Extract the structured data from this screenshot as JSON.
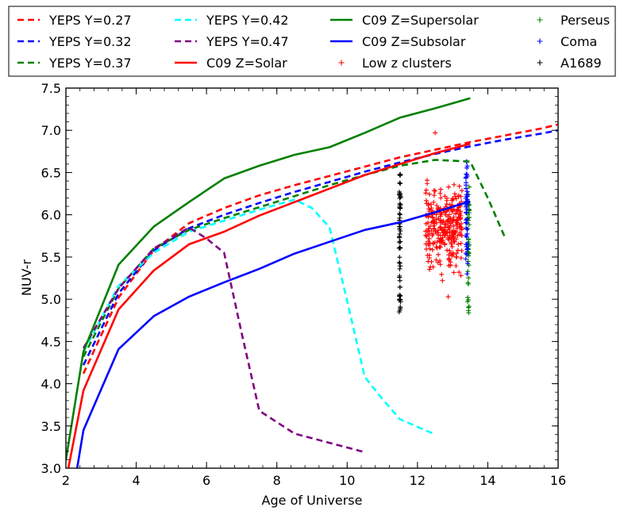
{
  "chart_data": {
    "type": "line",
    "xlabel": "Age of Universe",
    "ylabel": "NUV-r",
    "xlim": [
      2,
      16
    ],
    "ylim": [
      3.0,
      7.5
    ],
    "xticks": [
      2,
      4,
      6,
      8,
      10,
      12,
      14,
      16
    ],
    "xtick_labels": [
      "2",
      "4",
      "6",
      "8",
      "10",
      "12",
      "14",
      "16"
    ],
    "yticks": [
      3.0,
      3.5,
      4.0,
      4.5,
      5.0,
      5.5,
      6.0,
      6.5,
      7.0,
      7.5
    ],
    "ytick_labels": [
      "3.0",
      "3.5",
      "4.0",
      "4.5",
      "5.0",
      "5.5",
      "6.0",
      "6.5",
      "7.0",
      "7.5"
    ],
    "legend_position": "top (above plot, 4 columns)",
    "series": [
      {
        "name": "YEPS Y=0.27",
        "color": "#ff0000",
        "style": "dashed",
        "x": [
          2.5,
          3.5,
          4.5,
          5.5,
          6.5,
          7.5,
          8.5,
          9.5,
          10.5,
          11.5,
          12.5,
          13.5,
          14.5,
          15.5,
          16.0
        ],
        "y": [
          4.12,
          5.02,
          5.58,
          5.9,
          6.08,
          6.23,
          6.35,
          6.46,
          6.57,
          6.68,
          6.77,
          6.86,
          6.94,
          7.02,
          7.07
        ]
      },
      {
        "name": "YEPS Y=0.32",
        "color": "#0000ff",
        "style": "dashed",
        "x": [
          2.5,
          3.5,
          4.5,
          5.5,
          6.5,
          7.5,
          8.5,
          9.5,
          10.5,
          11.5,
          12.5,
          13.5,
          14.5,
          15.5,
          16.0
        ],
        "y": [
          4.22,
          5.07,
          5.58,
          5.84,
          6.0,
          6.14,
          6.27,
          6.39,
          6.51,
          6.62,
          6.72,
          6.81,
          6.89,
          6.96,
          7.0
        ]
      },
      {
        "name": "YEPS Y=0.37",
        "color": "#008000",
        "style": "dashed",
        "x": [
          2.5,
          3.5,
          4.5,
          5.5,
          6.5,
          7.5,
          8.5,
          9.5,
          10.5,
          11.5,
          12.5,
          13.5,
          14.0,
          14.5
        ],
        "y": [
          4.32,
          5.13,
          5.6,
          5.82,
          5.96,
          6.09,
          6.22,
          6.35,
          6.47,
          6.58,
          6.65,
          6.63,
          6.2,
          5.72
        ]
      },
      {
        "name": "YEPS Y=0.42",
        "color": "#00ffff",
        "style": "dashed",
        "x": [
          2.5,
          3.5,
          4.5,
          5.5,
          6.5,
          7.5,
          8.5,
          9.0,
          9.5,
          10.0,
          10.5,
          11.0,
          11.5,
          12.5
        ],
        "y": [
          4.38,
          5.16,
          5.55,
          5.8,
          5.93,
          6.06,
          6.18,
          6.08,
          5.85,
          4.98,
          4.08,
          3.82,
          3.58,
          3.4
        ]
      },
      {
        "name": "YEPS Y=0.47",
        "color": "#800080",
        "style": "dashed",
        "x": [
          2.5,
          3.5,
          4.5,
          5.5,
          6.0,
          6.5,
          7.0,
          7.5,
          8.5,
          9.5,
          10.5
        ],
        "y": [
          4.42,
          5.13,
          5.6,
          5.85,
          5.72,
          5.55,
          4.6,
          3.68,
          3.41,
          3.3,
          3.19
        ]
      },
      {
        "name": "C09 Z=Solar",
        "color": "#ff0000",
        "style": "solid",
        "x": [
          2.0,
          2.5,
          3.5,
          4.5,
          5.5,
          6.5,
          7.5,
          8.5,
          9.5,
          10.5,
          11.5,
          12.5,
          13.5
        ],
        "y": [
          2.85,
          3.92,
          4.88,
          5.34,
          5.65,
          5.8,
          5.99,
          6.15,
          6.31,
          6.47,
          6.6,
          6.73,
          6.84
        ]
      },
      {
        "name": "C09 Z=Supersolar",
        "color": "#008000",
        "style": "solid",
        "x": [
          2.0,
          2.5,
          3.5,
          4.5,
          5.5,
          6.5,
          7.5,
          8.5,
          9.5,
          10.5,
          11.5,
          12.5,
          13.5
        ],
        "y": [
          3.1,
          4.38,
          5.41,
          5.86,
          6.15,
          6.43,
          6.58,
          6.71,
          6.8,
          6.97,
          7.15,
          7.26,
          7.38
        ]
      },
      {
        "name": "C09 Z=Subsolar",
        "color": "#0000ff",
        "style": "solid",
        "x": [
          2.2,
          2.5,
          3.5,
          4.5,
          5.5,
          6.5,
          7.5,
          8.5,
          9.5,
          10.5,
          11.5,
          12.5,
          13.5
        ],
        "y": [
          2.7,
          3.45,
          4.41,
          4.8,
          5.03,
          5.2,
          5.36,
          5.54,
          5.68,
          5.82,
          5.91,
          6.03,
          6.16
        ]
      }
    ],
    "scatter": [
      {
        "name": "Low z clusters",
        "color": "#ff0000",
        "marker": "+",
        "x_range": [
          12.25,
          13.45
        ],
        "y_range": [
          5.03,
          6.97
        ],
        "count": 300
      },
      {
        "name": "Perseus",
        "color": "#008000",
        "marker": "+",
        "x_center": 13.45,
        "x_spread": 0.05,
        "y_range": [
          4.84,
          6.33
        ],
        "count": 45
      },
      {
        "name": "Coma",
        "color": "#0000ff",
        "marker": "+",
        "x_center": 13.4,
        "x_spread": 0.05,
        "y_range": [
          5.3,
          6.63
        ],
        "count": 50
      },
      {
        "name": "A1689",
        "color": "#000000",
        "marker": "+",
        "x_center": 11.5,
        "x_spread": 0.04,
        "y_range": [
          4.85,
          6.48
        ],
        "count": 60
      }
    ],
    "legend": [
      {
        "label": "YEPS Y=0.27",
        "color": "#ff0000",
        "kind": "dashed"
      },
      {
        "label": "YEPS Y=0.32",
        "color": "#0000ff",
        "kind": "dashed"
      },
      {
        "label": "YEPS Y=0.37",
        "color": "#008000",
        "kind": "dashed"
      },
      {
        "label": "YEPS Y=0.42",
        "color": "#00ffff",
        "kind": "dashed"
      },
      {
        "label": "YEPS Y=0.47",
        "color": "#800080",
        "kind": "dashed"
      },
      {
        "label": "C09 Z=Solar",
        "color": "#ff0000",
        "kind": "solid"
      },
      {
        "label": "C09 Z=Supersolar",
        "color": "#008000",
        "kind": "solid"
      },
      {
        "label": "C09 Z=Subsolar",
        "color": "#0000ff",
        "kind": "solid"
      },
      {
        "label": "Low z clusters",
        "color": "#ff0000",
        "kind": "marker"
      },
      {
        "label": "Perseus",
        "color": "#008000",
        "kind": "marker"
      },
      {
        "label": "Coma",
        "color": "#0000ff",
        "kind": "marker"
      },
      {
        "label": "A1689",
        "color": "#000000",
        "kind": "marker"
      }
    ]
  }
}
